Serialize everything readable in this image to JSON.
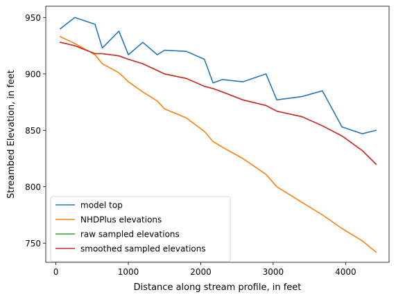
{
  "chart_data": {
    "type": "line",
    "title": "",
    "xlabel": "Distance along stream profile, in feet",
    "ylabel": "Streambed Elevation, in feet",
    "xlim": [
      -140,
      4600
    ],
    "ylim": [
      733,
      960
    ],
    "xticks": [
      0,
      1000,
      2000,
      3000,
      4000
    ],
    "yticks": [
      750,
      800,
      850,
      900,
      950
    ],
    "xtick_labels": [
      "0",
      "1000",
      "2000",
      "3000",
      "4000"
    ],
    "ytick_labels": [
      "750",
      "800",
      "850",
      "900",
      "950"
    ],
    "grid": false,
    "legend_position": "lower-left",
    "series": [
      {
        "name": "model top",
        "color": "#1f77b4",
        "x": [
          60,
          260,
          540,
          640,
          870,
          1000,
          1200,
          1400,
          1500,
          1800,
          2050,
          2170,
          2300,
          2580,
          2900,
          3050,
          3400,
          3680,
          3950,
          4230,
          4420
        ],
        "y": [
          940,
          950,
          944,
          923,
          938,
          917,
          928,
          917,
          921,
          920,
          913,
          892,
          895,
          893,
          900,
          877,
          880,
          885,
          853,
          847,
          850
        ]
      },
      {
        "name": "NHDPlus elevations",
        "color": "#ff7f0e",
        "x": [
          60,
          260,
          540,
          640,
          870,
          1000,
          1200,
          1400,
          1500,
          1800,
          2050,
          2170,
          2300,
          2580,
          2900,
          3050,
          3400,
          3680,
          3950,
          4230,
          4420
        ],
        "y": [
          933,
          927,
          917,
          909,
          901,
          893,
          884,
          876,
          869,
          861,
          849,
          840,
          835,
          825,
          811,
          800,
          786,
          775,
          763,
          752,
          742
        ]
      },
      {
        "name": "raw sampled elevations",
        "color": "#2ca02c",
        "x": [
          60,
          260,
          540,
          640,
          870,
          1000,
          1200,
          1400,
          1500,
          1800,
          2050,
          2170,
          2300,
          2580,
          2900,
          3050,
          3400,
          3680,
          3950,
          4230,
          4420
        ],
        "y": [
          928,
          925,
          918,
          918,
          916,
          913,
          909,
          903,
          900,
          896,
          889,
          887,
          884,
          877,
          872,
          867,
          862,
          854,
          845,
          832,
          820
        ]
      },
      {
        "name": "smoothed sampled elevations",
        "color": "#d62728",
        "x": [
          60,
          260,
          540,
          640,
          870,
          1000,
          1200,
          1400,
          1500,
          1800,
          2050,
          2170,
          2300,
          2580,
          2900,
          3050,
          3400,
          3680,
          3950,
          4230,
          4420
        ],
        "y": [
          928,
          925,
          918,
          918,
          916,
          913,
          909,
          903,
          900,
          896,
          889,
          887,
          884,
          877,
          872,
          867,
          862,
          854,
          845,
          832,
          820
        ]
      }
    ]
  }
}
